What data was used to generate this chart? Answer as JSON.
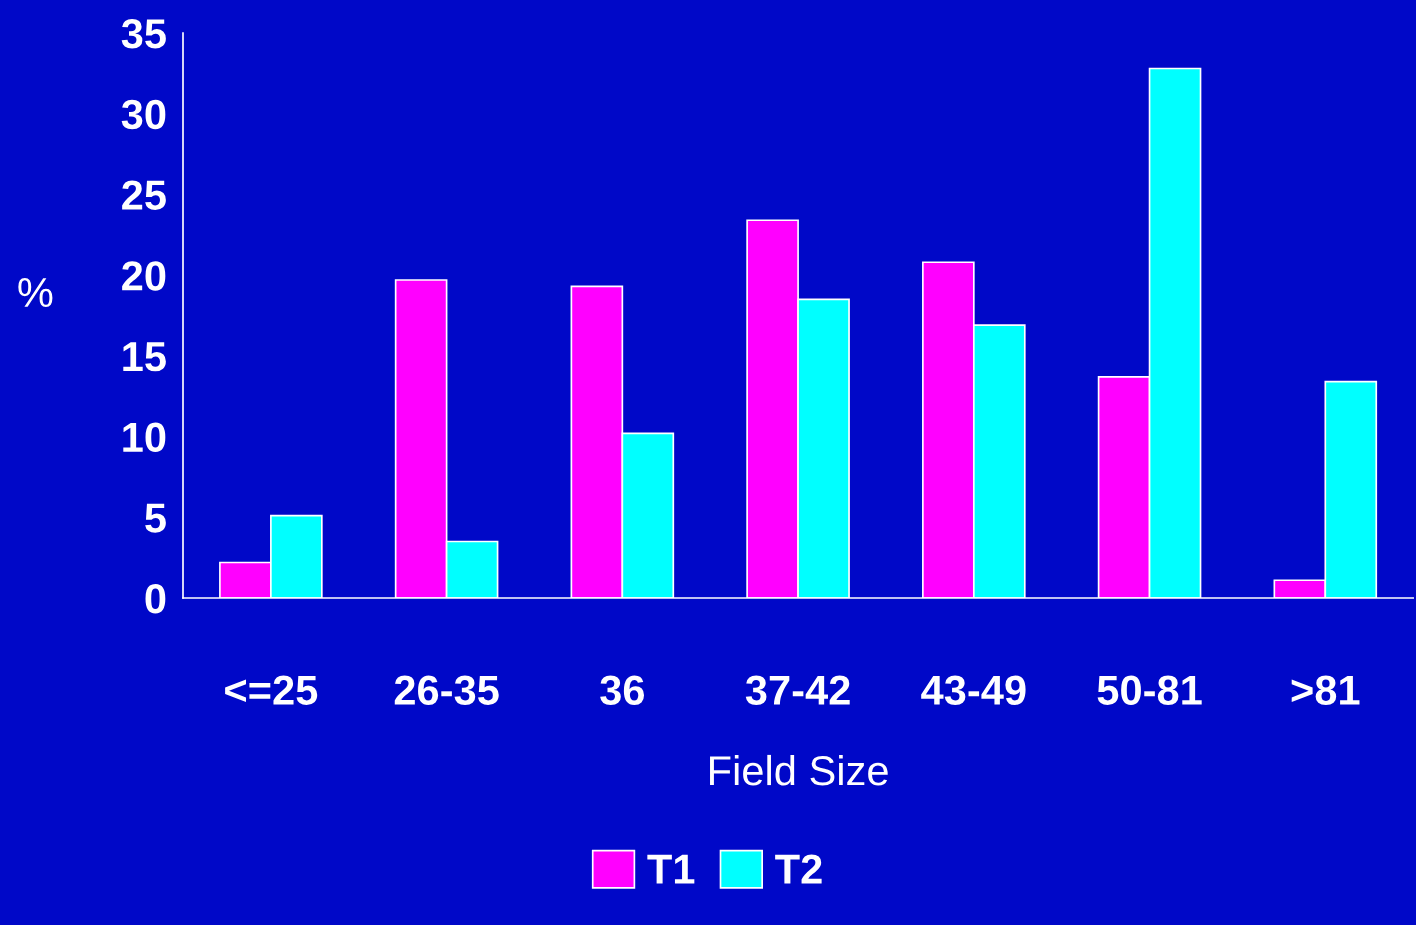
{
  "chart_data": {
    "type": "bar",
    "xlabel": "Field Size",
    "ylabel": "%",
    "categories": [
      "<=25",
      "26-35",
      "36",
      "37-42",
      "43-49",
      "50-81",
      ">81"
    ],
    "series": [
      {
        "name": "T1",
        "color": "#ff00ff",
        "values": [
          2.2,
          19.7,
          19.3,
          23.4,
          20.8,
          13.7,
          1.1
        ]
      },
      {
        "name": "T2",
        "color": "#00ffff",
        "values": [
          5.1,
          3.5,
          10.2,
          18.5,
          16.9,
          32.8,
          13.4
        ]
      }
    ],
    "ylim": [
      0,
      35
    ],
    "yticks": [
      0,
      5,
      10,
      15,
      20,
      25,
      30,
      35
    ],
    "grid": false,
    "legend": "bottom"
  }
}
